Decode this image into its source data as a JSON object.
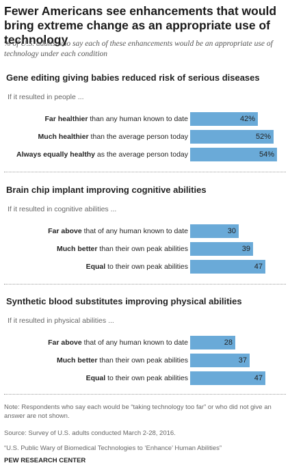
{
  "title": "Fewer Americans see enhancements that would bring extreme change as an appropriate use of technology",
  "subtitle": "% of U.S. adults who say each of these enhancements would be an appropriate use of technology under each condition",
  "bar_color": "#6aaad8",
  "chart_data": [
    {
      "type": "bar",
      "orientation": "horizontal",
      "title": "Gene editing giving babies reduced risk of serious diseases",
      "condition": "If it resulted in people ...",
      "categories": [
        [
          "Far healthier",
          " than any human known to date"
        ],
        [
          "Much healthier",
          " than the average person today"
        ],
        [
          "Always equally healthy",
          " as the average person today"
        ]
      ],
      "values": [
        42,
        52,
        54
      ],
      "value_labels": [
        "42%",
        "52%",
        "54%"
      ]
    },
    {
      "type": "bar",
      "orientation": "horizontal",
      "title": "Brain chip implant improving cognitive abilities",
      "condition": "If it resulted in cognitive abilities ...",
      "categories": [
        [
          "Far above",
          " that of any human known to date"
        ],
        [
          "Much better",
          " than their own peak abilities"
        ],
        [
          "Equal",
          " to their own peak abilities"
        ]
      ],
      "values": [
        30,
        39,
        47
      ],
      "value_labels": [
        "30",
        "39",
        "47"
      ]
    },
    {
      "type": "bar",
      "orientation": "horizontal",
      "title": "Synthetic blood substitutes improving physical abilities",
      "condition": "If it resulted in physical abilities ...",
      "categories": [
        [
          "Far above",
          " that of any human known to date"
        ],
        [
          "Much better",
          " than their own peak abilities"
        ],
        [
          "Equal",
          " to their own peak abilities"
        ]
      ],
      "values": [
        28,
        37,
        47
      ],
      "value_labels": [
        "28",
        "37",
        "47"
      ]
    }
  ],
  "note": "Note: Respondents who say each would be “taking technology too far” or who did not give an answer are not shown.",
  "source": "Source: Survey of U.S. adults conducted March 2-28, 2016.",
  "report": "“U.S. Public Wary of Biomedical Technologies to ‘Enhance’ Human Abilities”",
  "credit": "PEW RESEARCH CENTER"
}
